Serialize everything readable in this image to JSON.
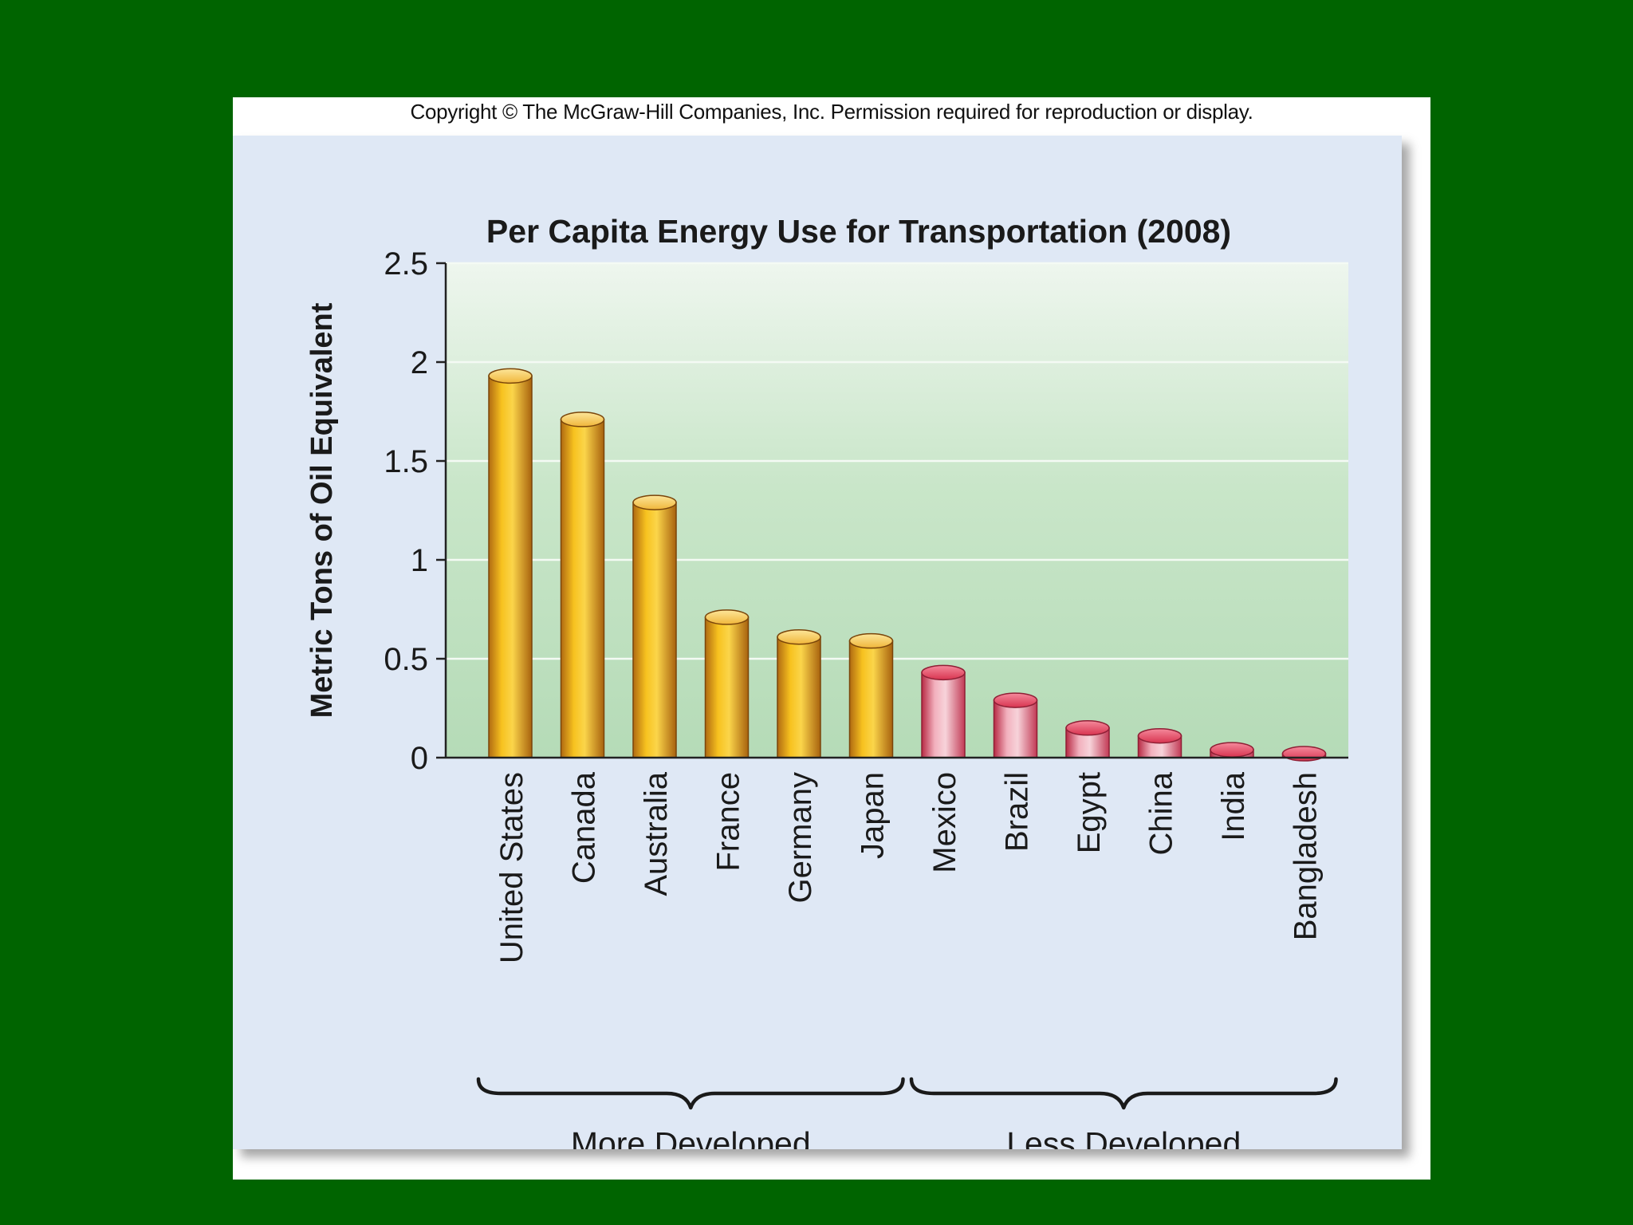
{
  "copyright": "Copyright © The McGraw-Hill Companies, Inc. Permission required for reproduction or display.",
  "chart_data": {
    "type": "bar",
    "title": "Per Capita Energy Use for Transportation (2008)",
    "xlabel": "",
    "ylabel": "Metric Tons of Oil Equivalent",
    "ylim": [
      0,
      2.5
    ],
    "yticks": [
      "0",
      "0.5",
      "1",
      "1.5",
      "2",
      "2.5"
    ],
    "ytick_values": [
      0,
      0.5,
      1,
      1.5,
      2,
      2.5
    ],
    "grid": true,
    "categories": [
      "United States",
      "Canada",
      "Australia",
      "France",
      "Germany",
      "Japan",
      "Mexico",
      "Brazil",
      "Egypt",
      "China",
      "India",
      "Bangladesh"
    ],
    "values": [
      1.93,
      1.71,
      1.29,
      0.71,
      0.61,
      0.59,
      0.43,
      0.29,
      0.15,
      0.11,
      0.04,
      0.02
    ],
    "groups": [
      {
        "label": "More Developed",
        "start": 0,
        "end": 5
      },
      {
        "label": "Less Developed",
        "start": 6,
        "end": 11
      }
    ],
    "colors": {
      "more_developed": "#f2b51c",
      "less_developed": "#e0566c",
      "plot_top": "#eef6ee",
      "plot_bottom": "#b8dcb8"
    }
  }
}
